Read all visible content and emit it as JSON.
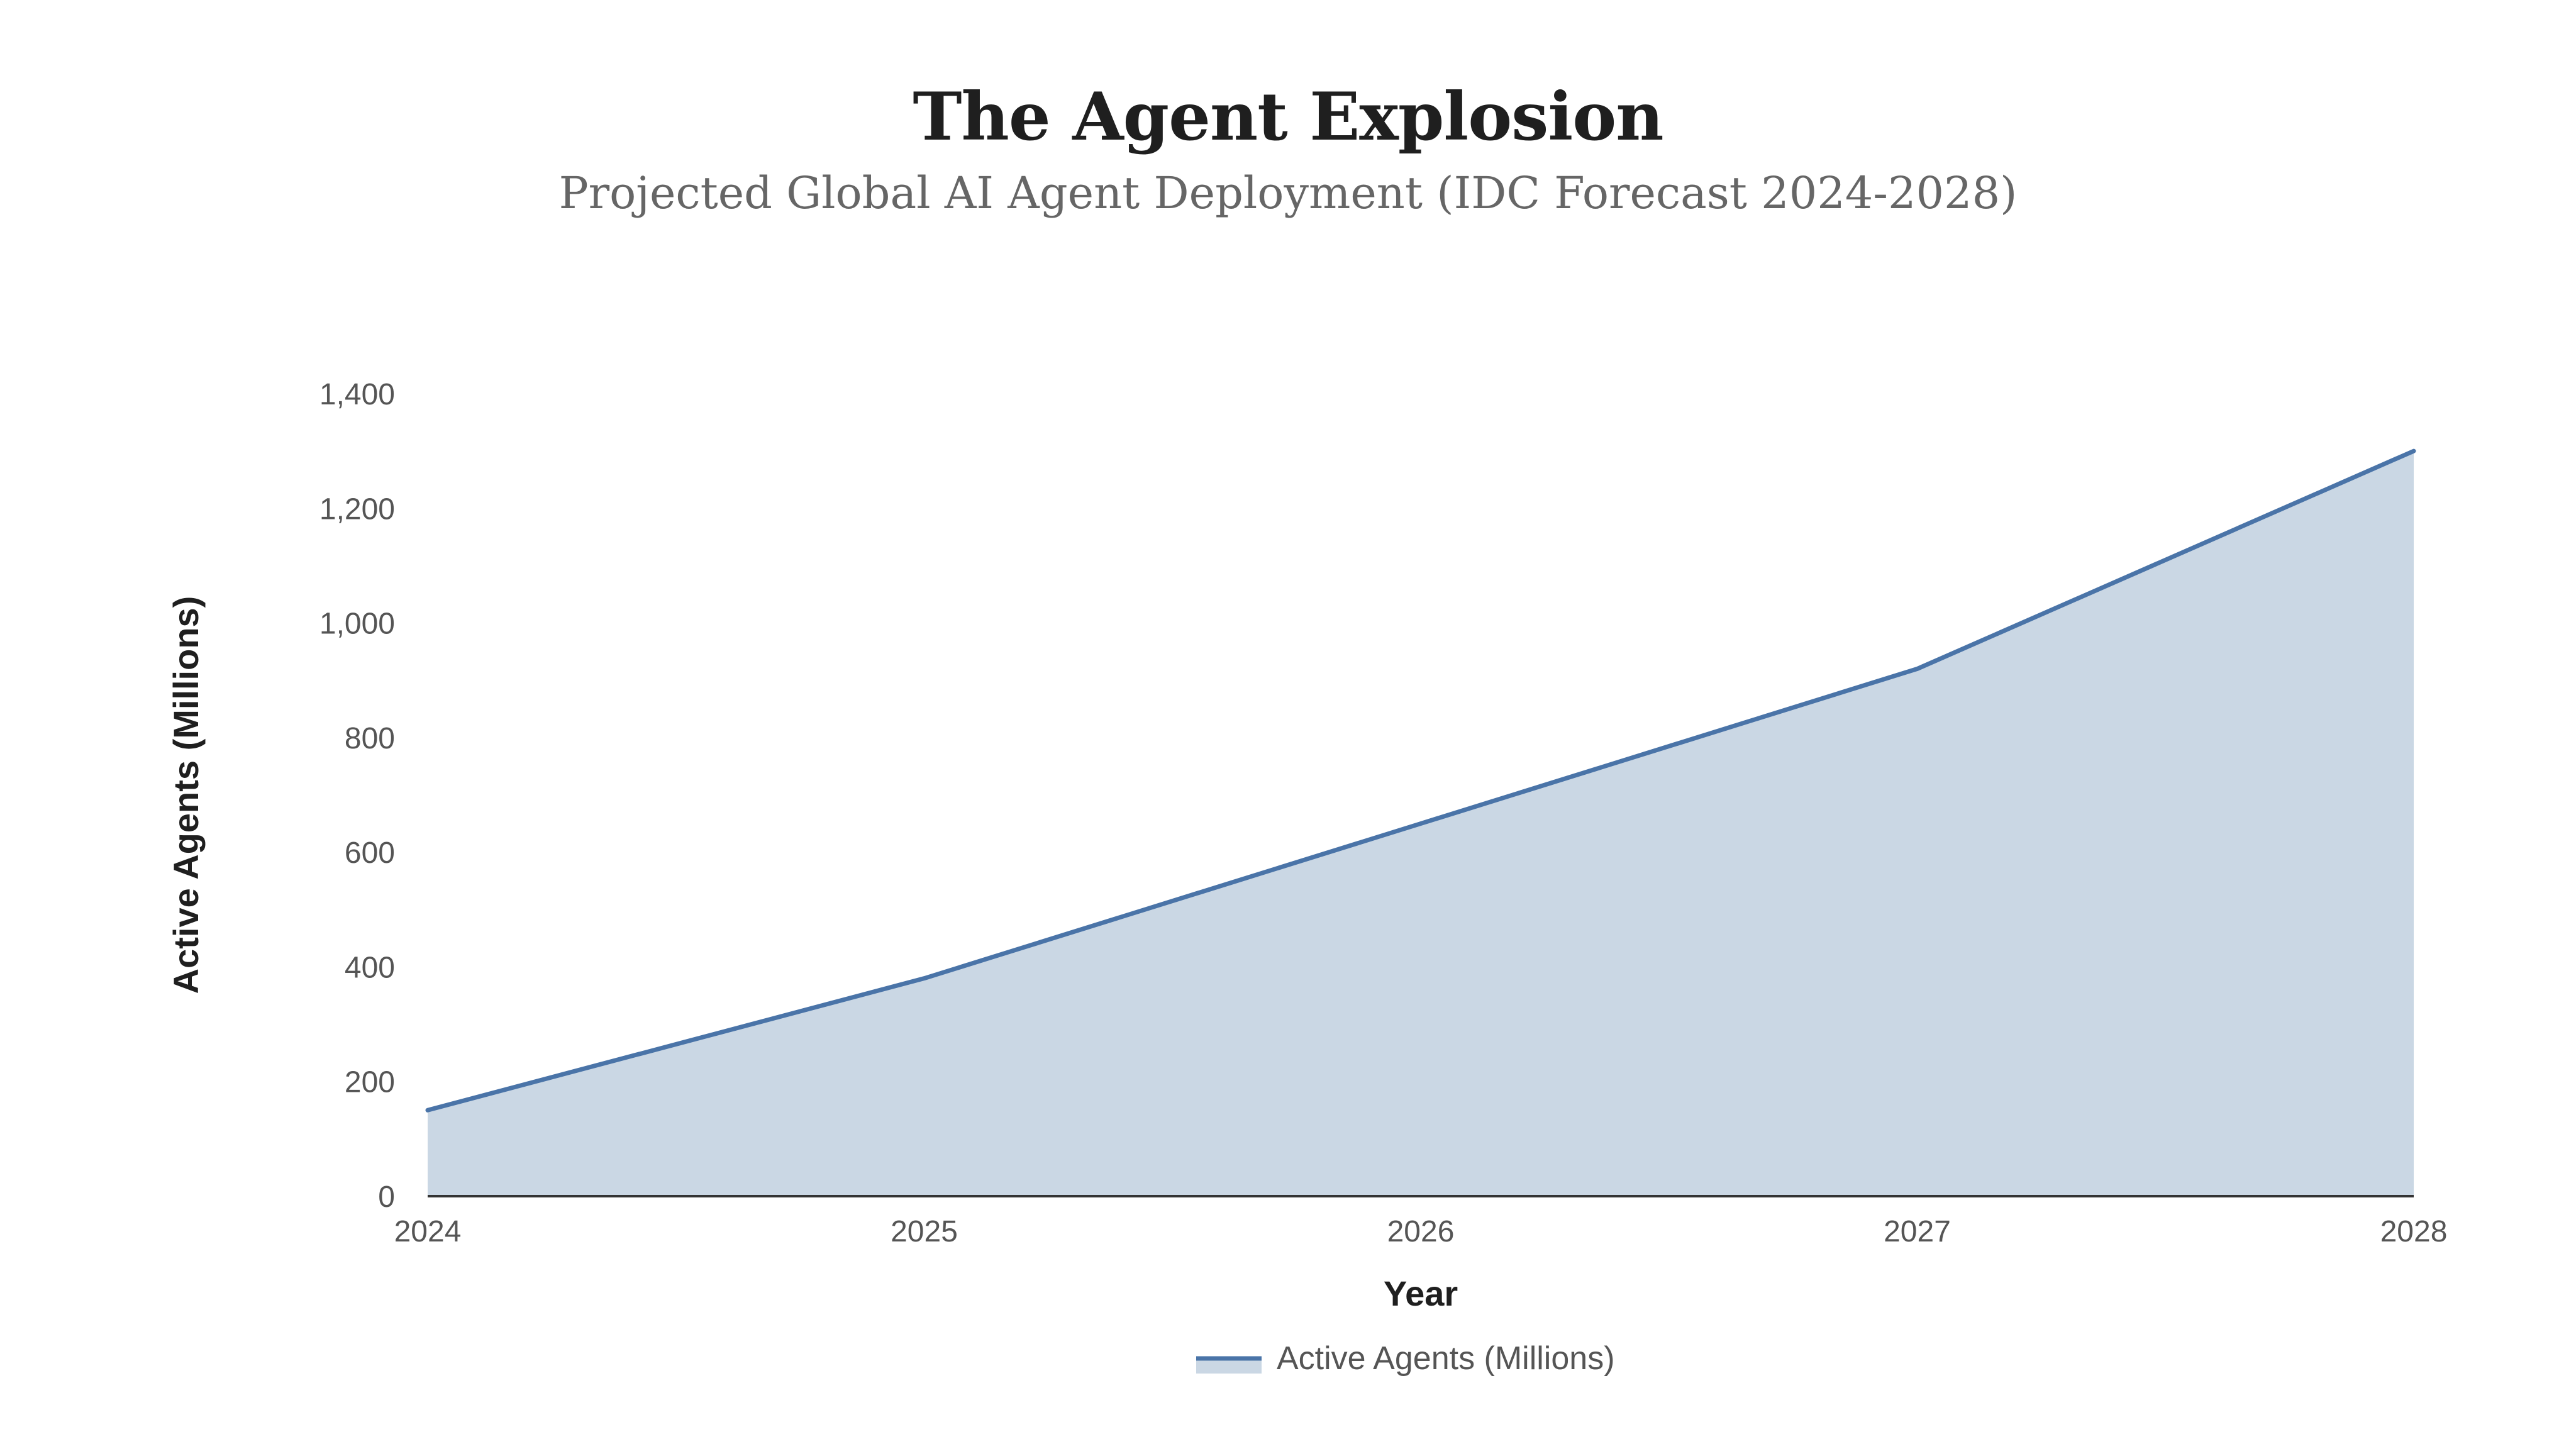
{
  "header": {
    "title": "The Agent Explosion",
    "subtitle": "Projected Global AI Agent Deployment (IDC Forecast 2024-2028)"
  },
  "colors": {
    "line": "#4a74a8",
    "fill": "#cad7e4",
    "axis": "#333333",
    "tick_text": "#555555"
  },
  "chart_data": {
    "type": "area",
    "title": "The Agent Explosion",
    "subtitle": "Projected Global AI Agent Deployment (IDC Forecast 2024-2028)",
    "xlabel": "Year",
    "ylabel": "Active Agents (Millions)",
    "categories": [
      "2024",
      "2025",
      "2026",
      "2027",
      "2028"
    ],
    "series": [
      {
        "name": "Active Agents (Millions)",
        "values": [
          150,
          380,
          650,
          920,
          1300
        ]
      }
    ],
    "ylim": [
      0,
      1400
    ],
    "yticks": [
      0,
      200,
      400,
      600,
      800,
      1000,
      1200,
      1400
    ],
    "ytick_labels": [
      "0",
      "200",
      "400",
      "600",
      "800",
      "1,000",
      "1,200",
      "1,400"
    ],
    "grid": false,
    "legend": "bottom-center"
  }
}
